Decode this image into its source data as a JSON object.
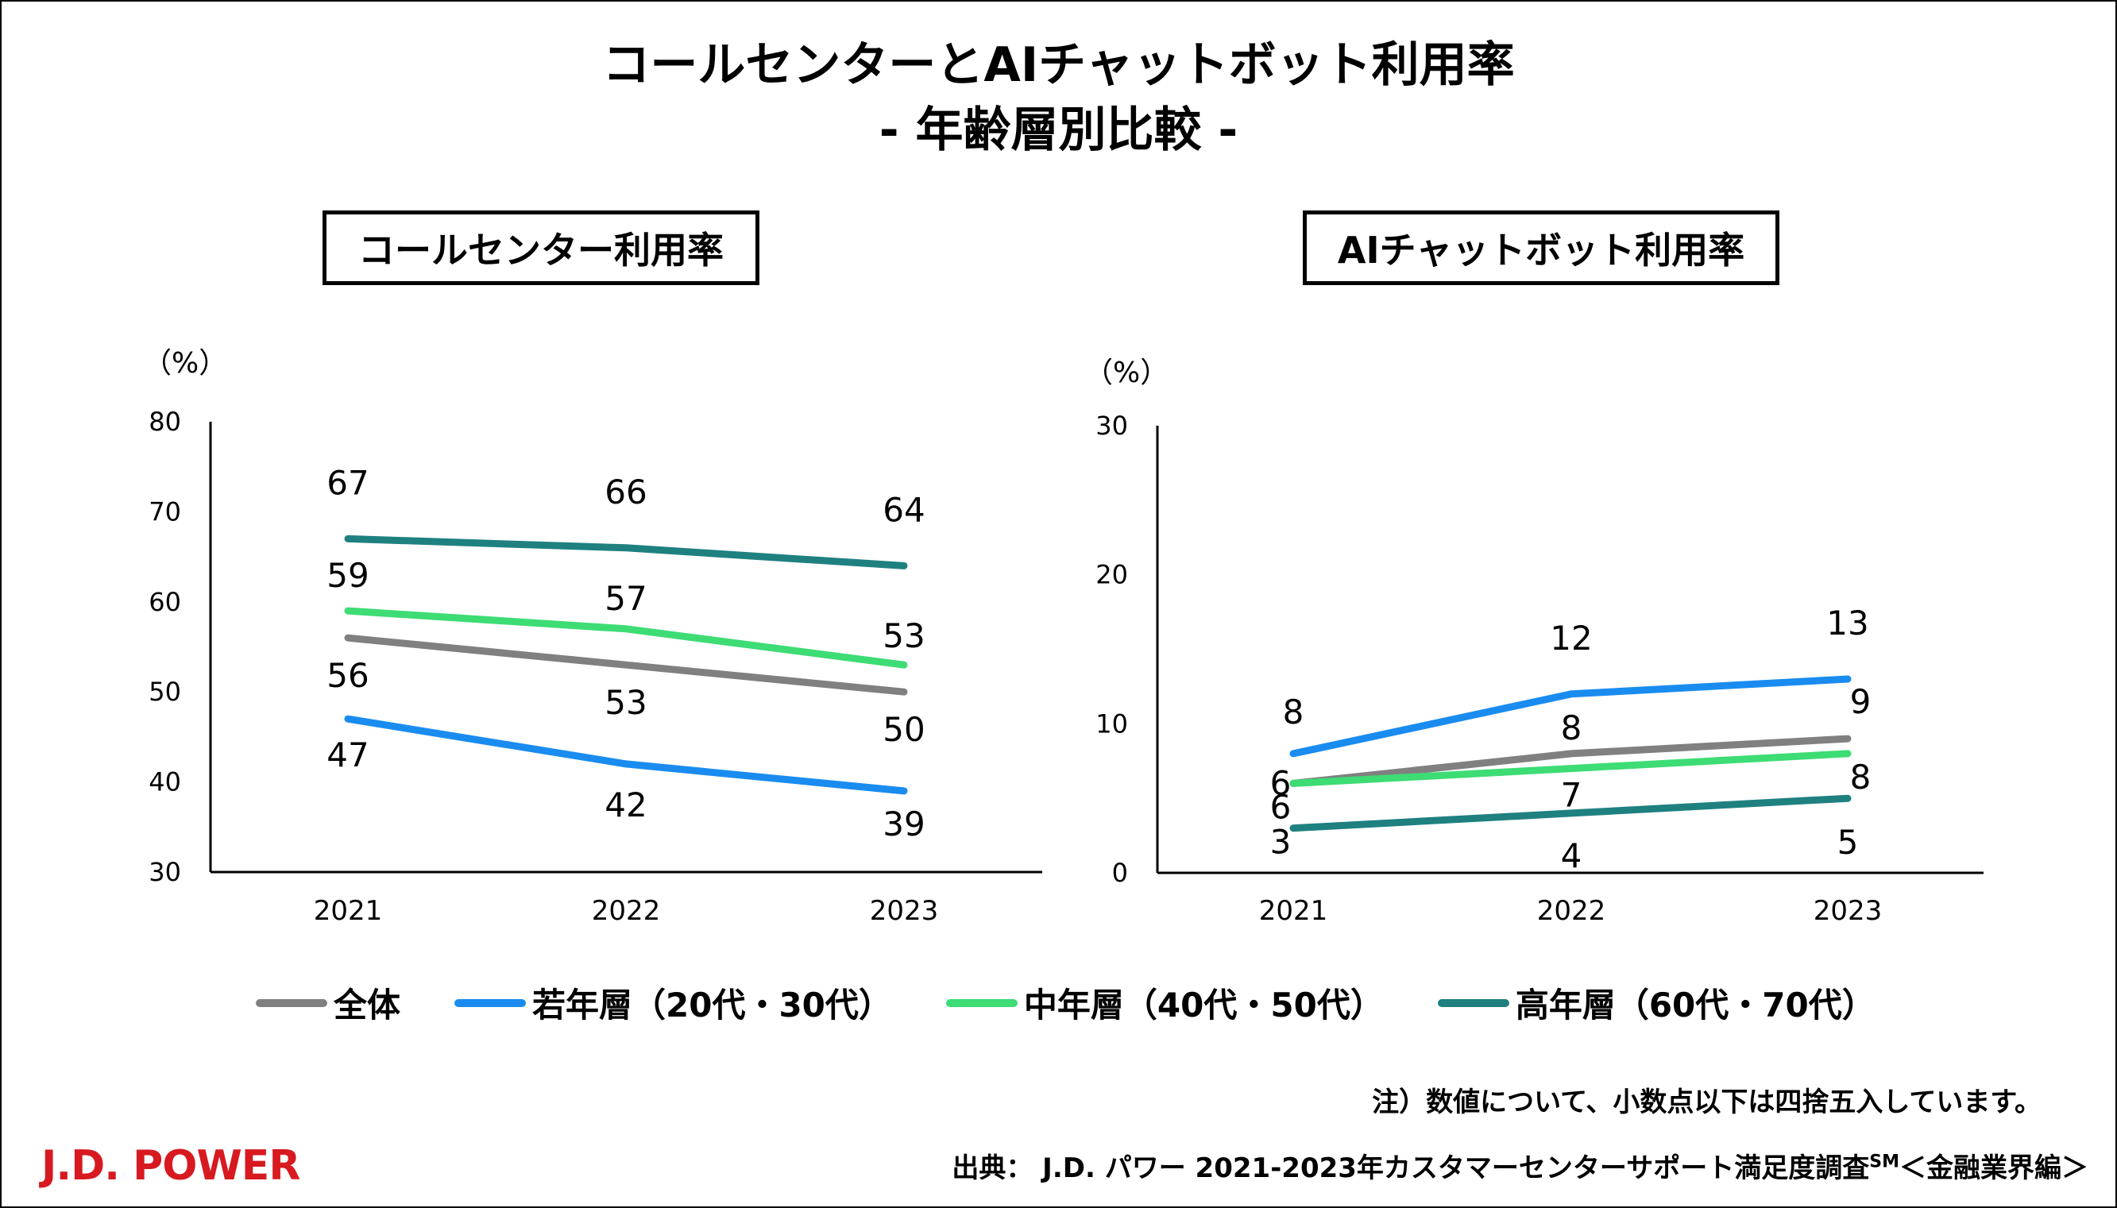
{
  "title": {
    "line1": "コールセンターとAIチャットボット利用率",
    "line2": "- 年齢層別比較 -"
  },
  "colors": {
    "all": "#808080",
    "young": "#1a8cf0",
    "middle": "#3ddc74",
    "senior": "#1f8080",
    "brand": "#d71920"
  },
  "chart_data": [
    {
      "type": "line",
      "title": "コールセンター利用率",
      "ylabel": "（%）",
      "ylim": [
        30,
        80
      ],
      "yticks": [
        "30",
        "40",
        "50",
        "60",
        "70",
        "80"
      ],
      "categories": [
        "2021",
        "2022",
        "2023"
      ],
      "series": [
        {
          "name": "全体",
          "values": [
            56,
            53,
            50
          ],
          "labels": [
            "56",
            "53",
            "50"
          ]
        },
        {
          "name": "若年層（20代・30代）",
          "values": [
            47,
            42,
            39
          ],
          "labels": [
            "47",
            "42",
            "39"
          ]
        },
        {
          "name": "中年層（40代・50代）",
          "values": [
            59,
            57,
            53
          ],
          "labels": [
            "59",
            "57",
            "53"
          ]
        },
        {
          "name": "高年層（60代・70代）",
          "values": [
            67,
            66,
            64
          ],
          "labels": [
            "67",
            "66",
            "64"
          ]
        }
      ]
    },
    {
      "type": "line",
      "title": "AIチャットボット利用率",
      "ylabel": "（%）",
      "ylim": [
        0,
        30
      ],
      "yticks": [
        "0",
        "10",
        "20",
        "30"
      ],
      "categories": [
        "2021",
        "2022",
        "2023"
      ],
      "series": [
        {
          "name": "全体",
          "values": [
            6,
            8,
            9
          ],
          "labels": [
            "6",
            "8",
            "9"
          ]
        },
        {
          "name": "若年層（20代・30代）",
          "values": [
            8,
            12,
            13
          ],
          "labels": [
            "8",
            "12",
            "13"
          ]
        },
        {
          "name": "中年層（40代・50代）",
          "values": [
            6,
            7,
            8
          ],
          "labels": [
            "6",
            "7",
            "8"
          ]
        },
        {
          "name": "高年層（60代・70代）",
          "values": [
            3,
            4,
            5
          ],
          "labels": [
            "3",
            "4",
            "5"
          ]
        }
      ]
    }
  ],
  "legend": [
    "全体",
    "若年層（20代・30代）",
    "中年層（40代・50代）",
    "高年層（60代・70代）"
  ],
  "footer": {
    "note": "注）数値について、小数点以下は四捨五入しています。",
    "source_main": "出典： J.D. パワー 2021-2023年カスタマーセンターサポート満足度調査",
    "source_sup": "SM",
    "source_tail": "＜金融業界編＞",
    "logo": "J.D. POWER"
  }
}
